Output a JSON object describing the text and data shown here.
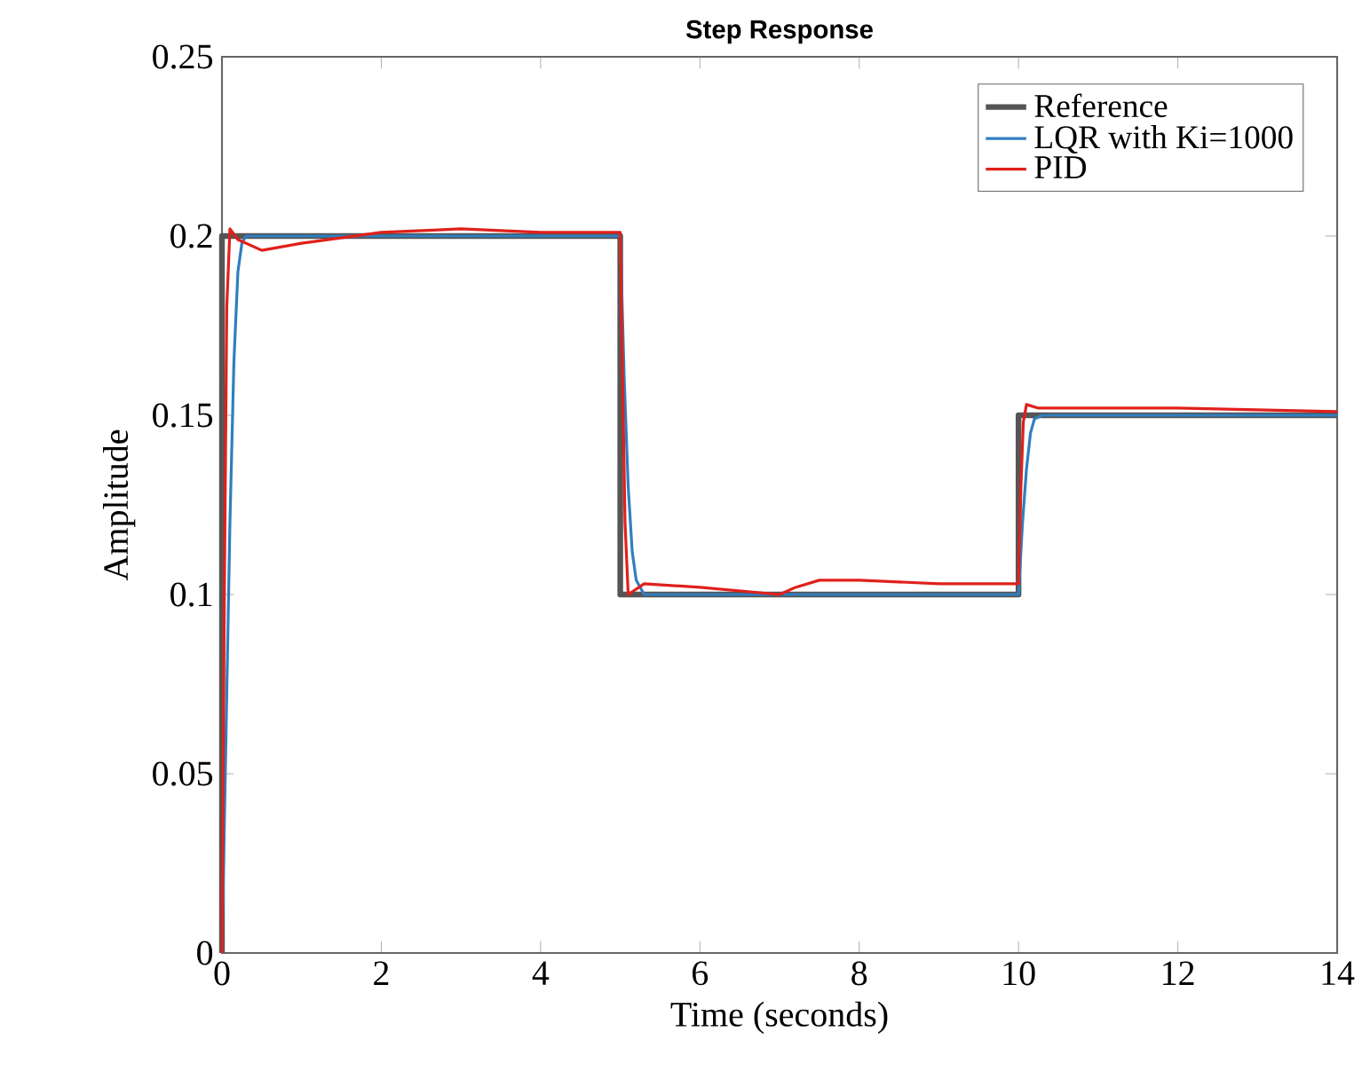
{
  "chart_data": {
    "type": "line",
    "title": "Step Response",
    "xlabel": "Time (seconds)",
    "ylabel": "Amplitude",
    "xlim": [
      0,
      14
    ],
    "ylim": [
      0,
      0.25
    ],
    "xticks": [
      0,
      2,
      4,
      6,
      8,
      10,
      12,
      14
    ],
    "yticks": [
      0,
      0.05,
      0.1,
      0.15,
      0.2,
      0.25
    ],
    "grid": false,
    "legend": "top right",
    "line_style": "solid",
    "series": [
      {
        "name": "Reference",
        "color": "#555555",
        "x": [
          0,
          0,
          5,
          5,
          10,
          10,
          14
        ],
        "values": [
          0,
          0.2,
          0.2,
          0.1,
          0.1,
          0.15,
          0.15
        ]
      },
      {
        "name": "LQR with Ki=1000",
        "color": "#2f7fbf",
        "x": [
          0,
          0.05,
          0.1,
          0.15,
          0.2,
          0.25,
          0.3,
          0.4,
          5,
          5.05,
          5.1,
          5.15,
          5.2,
          5.3,
          10,
          10.05,
          10.1,
          10.15,
          10.2,
          10.3,
          14
        ],
        "values": [
          0,
          0.06,
          0.12,
          0.165,
          0.19,
          0.198,
          0.2,
          0.2,
          0.2,
          0.16,
          0.13,
          0.112,
          0.104,
          0.1,
          0.1,
          0.12,
          0.135,
          0.145,
          0.149,
          0.15,
          0.15
        ]
      },
      {
        "name": "PID",
        "color": "#e0201b",
        "x": [
          0,
          0.03,
          0.06,
          0.1,
          0.2,
          0.5,
          1,
          2,
          3,
          4,
          5,
          5.03,
          5.06,
          5.1,
          5.3,
          6,
          7,
          7.2,
          7.5,
          8,
          9,
          10,
          10.03,
          10.06,
          10.1,
          10.25,
          12,
          14
        ],
        "values": [
          0,
          0.1,
          0.18,
          0.202,
          0.199,
          0.196,
          0.198,
          0.201,
          0.202,
          0.201,
          0.201,
          0.16,
          0.12,
          0.1,
          0.103,
          0.102,
          0.1,
          0.102,
          0.104,
          0.104,
          0.103,
          0.103,
          0.13,
          0.148,
          0.153,
          0.152,
          0.152,
          0.151
        ]
      }
    ]
  }
}
